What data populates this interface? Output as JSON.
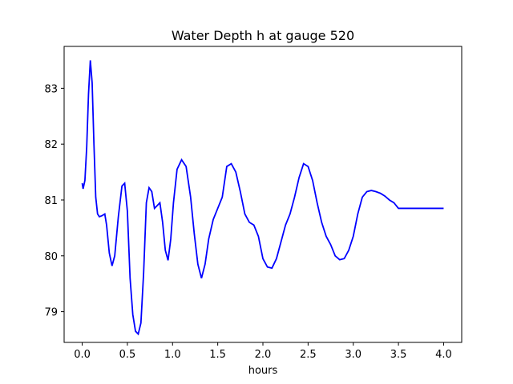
{
  "chart_data": {
    "type": "line",
    "title": "Water Depth h at gauge 520",
    "xlabel": "hours",
    "ylabel": "",
    "xlim": [
      -0.2,
      4.2
    ],
    "ylim": [
      78.45,
      83.75
    ],
    "xticks": [
      0.0,
      0.5,
      1.0,
      1.5,
      2.0,
      2.5,
      3.0,
      3.5,
      4.0
    ],
    "xtick_labels": [
      "0.0",
      "0.5",
      "1.0",
      "1.5",
      "2.0",
      "2.5",
      "3.0",
      "3.5",
      "4.0"
    ],
    "yticks": [
      79,
      80,
      81,
      82,
      83
    ],
    "ytick_labels": [
      "79",
      "80",
      "81",
      "82",
      "83"
    ],
    "grid": false,
    "line_color": "#0000ff",
    "series": [
      {
        "x": [
          0.0,
          0.01,
          0.03,
          0.05,
          0.07,
          0.09,
          0.11,
          0.13,
          0.15,
          0.17,
          0.19,
          0.22,
          0.25,
          0.27,
          0.3,
          0.33,
          0.36,
          0.4,
          0.44,
          0.47,
          0.5,
          0.53,
          0.56,
          0.59,
          0.62,
          0.65,
          0.68,
          0.71,
          0.74,
          0.77,
          0.8,
          0.83,
          0.86,
          0.89,
          0.92,
          0.95,
          0.98,
          1.01,
          1.05,
          1.1,
          1.15,
          1.2,
          1.24,
          1.28,
          1.32,
          1.36,
          1.4,
          1.45,
          1.5,
          1.55,
          1.6,
          1.65,
          1.7,
          1.75,
          1.8,
          1.85,
          1.9,
          1.95,
          2.0,
          2.05,
          2.1,
          2.15,
          2.2,
          2.25,
          2.3,
          2.35,
          2.4,
          2.45,
          2.5,
          2.55,
          2.6,
          2.65,
          2.7,
          2.75,
          2.8,
          2.85,
          2.9,
          2.95,
          3.0,
          3.05,
          3.1,
          3.15,
          3.2,
          3.25,
          3.3,
          3.35,
          3.4,
          3.45,
          3.5,
          3.55,
          3.6,
          3.65,
          3.7,
          3.75,
          3.8,
          3.85,
          3.9,
          3.95,
          4.0
        ],
        "y": [
          81.3,
          81.2,
          81.35,
          81.95,
          82.9,
          83.5,
          83.1,
          82.0,
          81.05,
          80.75,
          80.7,
          80.72,
          80.75,
          80.55,
          80.05,
          79.82,
          80.0,
          80.7,
          81.25,
          81.3,
          80.8,
          79.6,
          78.95,
          78.65,
          78.6,
          78.8,
          79.7,
          80.95,
          81.22,
          81.15,
          80.85,
          80.9,
          80.95,
          80.6,
          80.1,
          79.92,
          80.3,
          80.95,
          81.55,
          81.72,
          81.6,
          81.05,
          80.4,
          79.85,
          79.6,
          79.85,
          80.3,
          80.65,
          80.85,
          81.05,
          81.6,
          81.65,
          81.5,
          81.15,
          80.75,
          80.6,
          80.55,
          80.35,
          79.95,
          79.8,
          79.78,
          79.95,
          80.25,
          80.55,
          80.75,
          81.05,
          81.4,
          81.65,
          81.6,
          81.35,
          80.95,
          80.6,
          80.35,
          80.2,
          80.0,
          79.93,
          79.95,
          80.1,
          80.35,
          80.75,
          81.05,
          81.15,
          81.17,
          81.15,
          81.12,
          81.07,
          81.0,
          80.95,
          80.85,
          80.85,
          80.85,
          80.85,
          80.85,
          80.85,
          80.85,
          80.85,
          80.85,
          80.85,
          80.85
        ]
      }
    ]
  }
}
